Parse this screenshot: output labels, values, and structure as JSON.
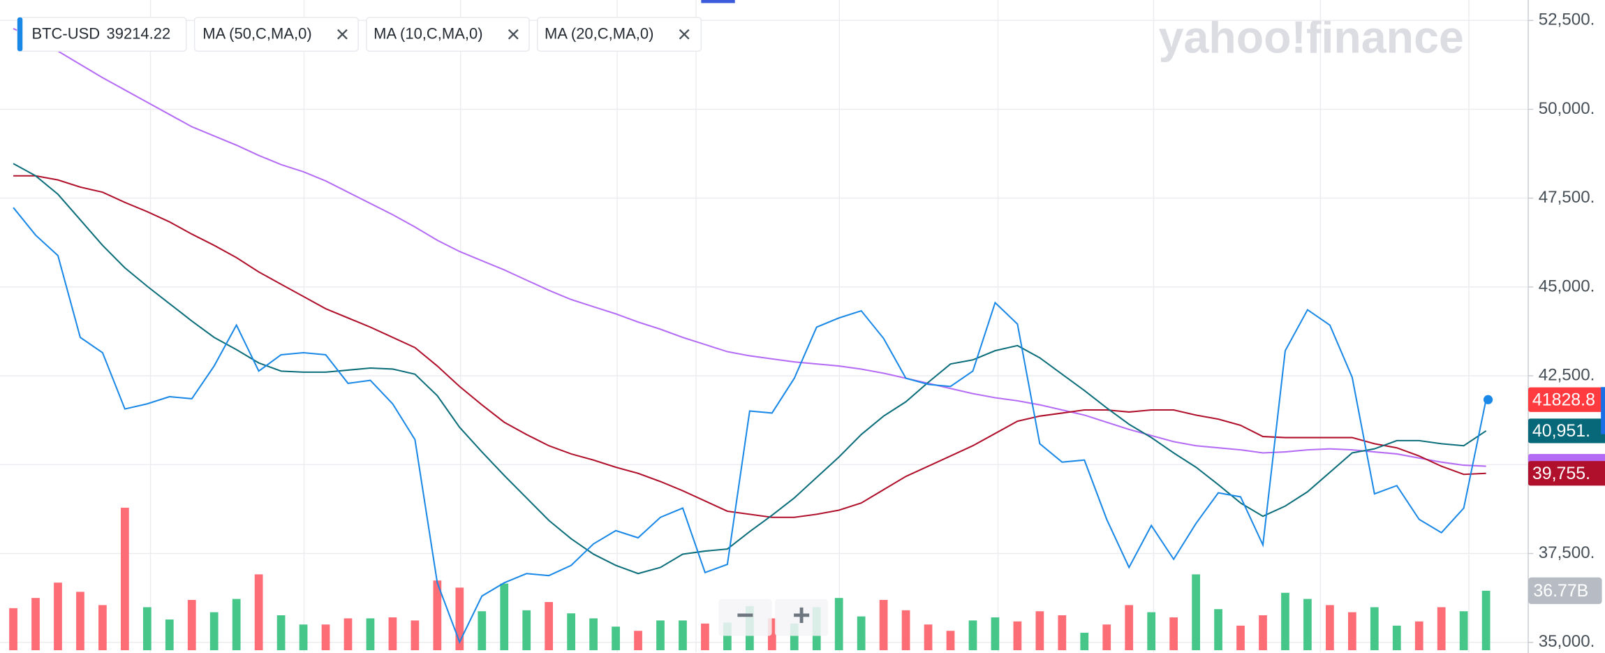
{
  "brand": "yahoo!finance",
  "controls": [
    "−",
    "+"
  ],
  "chart_data": {
    "type": "line",
    "last_price": 39214.22,
    "ylim": [
      34700,
      53075
    ],
    "yticks": [
      {
        "value": 35000,
        "label": "35,000."
      },
      {
        "value": 37500,
        "label": "37,500."
      },
      {
        "value": 40000,
        "label": "40,000."
      },
      {
        "value": 42500,
        "label": "42,500."
      },
      {
        "value": 45000,
        "label": "45,000."
      },
      {
        "value": 47500,
        "label": "47,500."
      },
      {
        "value": 50000,
        "label": "50,000."
      },
      {
        "value": 52500,
        "label": "52,500."
      }
    ],
    "grid": true,
    "series": [
      {
        "name": "BTC-USD",
        "color": "#1a88e6",
        "badge": {
          "label": "41828.8",
          "color": "#ff3b3f"
        },
        "values": [
          47235,
          46458,
          45883,
          43581,
          43150,
          41567,
          41711,
          41913,
          41855,
          42776,
          43927,
          42632,
          43092,
          43150,
          43092,
          42287,
          42373,
          41711,
          40704,
          36676,
          35008,
          36302,
          36676,
          36935,
          36878,
          37166,
          37770,
          38144,
          37942,
          38518,
          38777,
          36964,
          37194,
          41510,
          41452,
          42431,
          43869,
          44128,
          44329,
          43553,
          42431,
          42258,
          42200,
          42632,
          44559,
          43955,
          40589,
          40071,
          40129,
          38460,
          37108,
          38288,
          37338,
          38345,
          39208,
          39093,
          37741,
          43207,
          44358,
          43927,
          42459,
          39179,
          39410,
          38460,
          38086,
          38777,
          41828.8
        ]
      },
      {
        "name": "MA (50,C,MA,0)",
        "color": "#b56cf5",
        "badge": {
          "color": "#b56cf5"
        },
        "values": [
          52270,
          51982,
          51637,
          51263,
          50889,
          50544,
          50198,
          49853,
          49508,
          49249,
          48990,
          48702,
          48443,
          48242,
          47983,
          47667,
          47350,
          47034,
          46688,
          46314,
          45998,
          45739,
          45480,
          45192,
          44905,
          44646,
          44444,
          44243,
          44013,
          43811,
          43581,
          43380,
          43179,
          43063,
          42977,
          42891,
          42833,
          42776,
          42689,
          42574,
          42431,
          42287,
          42143,
          41999,
          41883,
          41798,
          41683,
          41539,
          41395,
          41193,
          40992,
          40819,
          40647,
          40532,
          40474,
          40417,
          40330,
          40359,
          40417,
          40445,
          40417,
          40359,
          40302,
          40186,
          40071,
          39985,
          39956
        ]
      },
      {
        "name": "MA (10,C,MA,0)",
        "color": "#0b6e7a",
        "badge": {
          "label": "40,951.",
          "color": "#07687a"
        },
        "values": [
          48472,
          48127,
          47609,
          46890,
          46171,
          45538,
          45020,
          44531,
          44042,
          43581,
          43236,
          42862,
          42632,
          42603,
          42603,
          42661,
          42718,
          42690,
          42546,
          41941,
          41050,
          40359,
          39697,
          39064,
          38431,
          37914,
          37482,
          37166,
          36935,
          37108,
          37482,
          37568,
          37626,
          38115,
          38575,
          39064,
          39640,
          40215,
          40848,
          41366,
          41769,
          42315,
          42833,
          42948,
          43207,
          43351,
          43006,
          42546,
          42085,
          41596,
          41136,
          40762,
          40330,
          39928,
          39438,
          38921,
          38547,
          38834,
          39237,
          39784,
          40330,
          40445,
          40676,
          40676,
          40589,
          40532,
          40951
        ]
      },
      {
        "name": "MA (20,C,MA,0)",
        "color": "#b0102b",
        "badge": {
          "label": "39,755.",
          "color": "#b0102b"
        },
        "values": [
          48127,
          48127,
          48012,
          47810,
          47667,
          47379,
          47120,
          46832,
          46487,
          46171,
          45825,
          45423,
          45077,
          44732,
          44387,
          44128,
          43869,
          43581,
          43294,
          42776,
          42200,
          41683,
          41193,
          40848,
          40532,
          40302,
          40129,
          39928,
          39755,
          39525,
          39266,
          38978,
          38690,
          38604,
          38518,
          38518,
          38604,
          38719,
          38921,
          39295,
          39669,
          39956,
          40244,
          40532,
          40877,
          41222,
          41366,
          41452,
          41539,
          41539,
          41481,
          41539,
          41539,
          41395,
          41280,
          41107,
          40791,
          40762,
          40762,
          40762,
          40762,
          40589,
          40474,
          40244,
          39956,
          39726,
          39755
        ]
      }
    ],
    "volume": {
      "ylim": [
        0,
        100
      ],
      "last_label": "36.77B",
      "values": [
        26.0,
        32.3,
        41.8,
        36.1,
        27.9,
        88.1,
        26.6,
        19.0,
        31.1,
        23.5,
        31.7,
        46.9,
        21.6,
        15.9,
        15.9,
        19.7,
        19.7,
        20.3,
        18.4,
        43.1,
        38.7,
        24.1,
        41.2,
        24.7,
        29.8,
        22.8,
        19.7,
        14.6,
        12.0,
        18.4,
        18.4,
        16.5,
        17.1,
        27.3,
        19.7,
        16.5,
        26.6,
        32.3,
        20.9,
        31.1,
        24.7,
        15.9,
        12.0,
        18.4,
        20.3,
        17.8,
        24.1,
        21.6,
        10.8,
        15.9,
        27.9,
        23.5,
        20.3,
        46.9,
        25.4,
        15.2,
        21.6,
        35.5,
        31.7,
        27.9,
        23.5,
        26.6,
        15.2,
        17.8,
        26.6,
        24.1,
        36.77
      ],
      "colors": [
        "#fc6d76",
        "#fc6d76",
        "#fc6d76",
        "#fc6d76",
        "#fc6d76",
        "#fc6d76",
        "#47c68a",
        "#47c68a",
        "#fc6d76",
        "#47c68a",
        "#47c68a",
        "#fc6d76",
        "#47c68a",
        "#47c68a",
        "#fc6d76",
        "#fc6d76",
        "#47c68a",
        "#fc6d76",
        "#fc6d76",
        "#fc6d76",
        "#fc6d76",
        "#47c68a",
        "#47c68a",
        "#47c68a",
        "#fc6d76",
        "#47c68a",
        "#47c68a",
        "#47c68a",
        "#fc6d76",
        "#47c68a",
        "#47c68a",
        "#fc6d76",
        "#47c68a",
        "#47c68a",
        "#fc6d76",
        "#47c68a",
        "#47c68a",
        "#47c68a",
        "#47c68a",
        "#fc6d76",
        "#fc6d76",
        "#fc6d76",
        "#fc6d76",
        "#47c68a",
        "#47c68a",
        "#fc6d76",
        "#fc6d76",
        "#fc6d76",
        "#47c68a",
        "#fc6d76",
        "#fc6d76",
        "#47c68a",
        "#fc6d76",
        "#47c68a",
        "#47c68a",
        "#fc6d76",
        "#fc6d76",
        "#47c68a",
        "#47c68a",
        "#fc6d76",
        "#fc6d76",
        "#47c68a",
        "#47c68a",
        "#fc6d76",
        "#fc6d76",
        "#47c68a",
        "#47c68a"
      ]
    }
  }
}
